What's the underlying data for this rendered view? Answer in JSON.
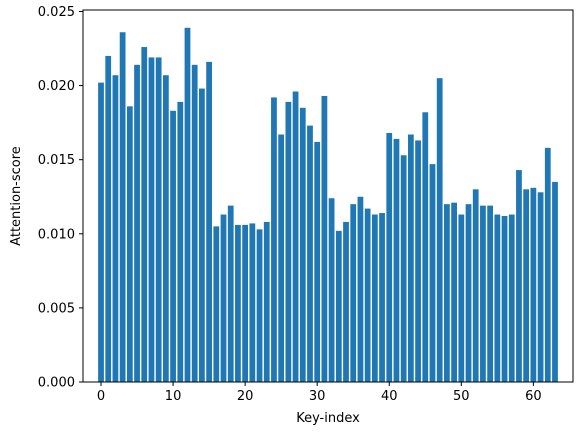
{
  "chart_data": {
    "type": "bar",
    "title": "",
    "xlabel": "Key-index",
    "ylabel": "Attention-score",
    "bar_color": "#1f77b4",
    "x": [
      0,
      1,
      2,
      3,
      4,
      5,
      6,
      7,
      8,
      9,
      10,
      11,
      12,
      13,
      14,
      15,
      16,
      17,
      18,
      19,
      20,
      21,
      22,
      23,
      24,
      25,
      26,
      27,
      28,
      29,
      30,
      31,
      32,
      33,
      34,
      35,
      36,
      37,
      38,
      39,
      40,
      41,
      42,
      43,
      44,
      45,
      46,
      47,
      48,
      49,
      50,
      51,
      52,
      53,
      54,
      55,
      56,
      57,
      58,
      59,
      60,
      61,
      62,
      63
    ],
    "values": [
      0.0202,
      0.022,
      0.0207,
      0.0236,
      0.0186,
      0.0214,
      0.0226,
      0.0219,
      0.0219,
      0.0207,
      0.0183,
      0.0189,
      0.0239,
      0.0214,
      0.0198,
      0.0216,
      0.0105,
      0.0113,
      0.0119,
      0.0106,
      0.0106,
      0.0107,
      0.0103,
      0.0108,
      0.0192,
      0.0167,
      0.0189,
      0.0196,
      0.0185,
      0.0173,
      0.0162,
      0.0193,
      0.0124,
      0.0102,
      0.0108,
      0.012,
      0.0125,
      0.0117,
      0.0113,
      0.0114,
      0.0168,
      0.0164,
      0.0153,
      0.0167,
      0.0163,
      0.0182,
      0.0147,
      0.0205,
      0.012,
      0.0121,
      0.0113,
      0.012,
      0.013,
      0.0119,
      0.0119,
      0.0113,
      0.0112,
      0.0113,
      0.0143,
      0.013,
      0.0131,
      0.0128,
      0.0158,
      0.0135
    ],
    "xlim": [
      -2.5,
      65.5
    ],
    "ylim": [
      0,
      0.0251
    ],
    "xticks": [
      0,
      10,
      20,
      30,
      40,
      50,
      60
    ],
    "xtick_labels": [
      "0",
      "10",
      "20",
      "30",
      "40",
      "50",
      "60"
    ],
    "yticks": [
      0,
      0.005,
      0.01,
      0.015,
      0.02,
      0.025
    ],
    "ytick_labels": [
      "0.000",
      "0.005",
      "0.010",
      "0.015",
      "0.020",
      "0.025"
    ],
    "grid": false,
    "legend": "none"
  }
}
